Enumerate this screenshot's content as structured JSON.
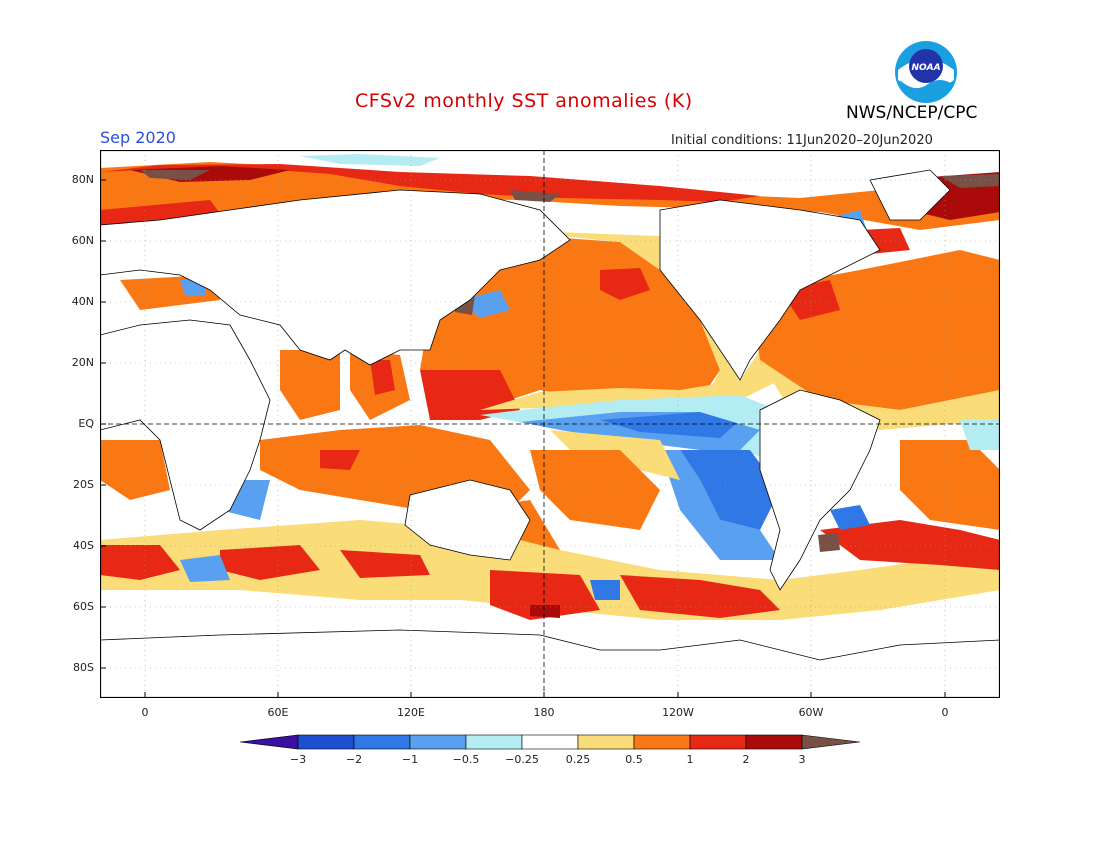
{
  "header": {
    "title": "CFSv2 monthly SST anomalies (K)",
    "agency": "NWS/NCEP/CPC",
    "logo_text": "NOAA",
    "month": "Sep 2020",
    "initial_conditions": "Initial conditions: 11Jun2020–20Jun2020"
  },
  "map": {
    "lat_labels": [
      "80N",
      "60N",
      "40N",
      "20N",
      "EQ",
      "20S",
      "40S",
      "60S",
      "80S"
    ],
    "lon_labels": [
      "0",
      "60E",
      "120E",
      "180",
      "120W",
      "60W",
      "0"
    ]
  },
  "legend": {
    "levels": [
      "−3",
      "−2",
      "−1",
      "−0.5",
      "−0.25",
      "0.25",
      "0.5",
      "1",
      "2",
      "3"
    ],
    "colors": [
      "#3c10a0",
      "#1c50d0",
      "#2f78e6",
      "#5aa0f0",
      "#b4ecf4",
      "#ffffff",
      "#fadc78",
      "#fa7814",
      "#e62814",
      "#aa0a0a",
      "#785046"
    ]
  }
}
